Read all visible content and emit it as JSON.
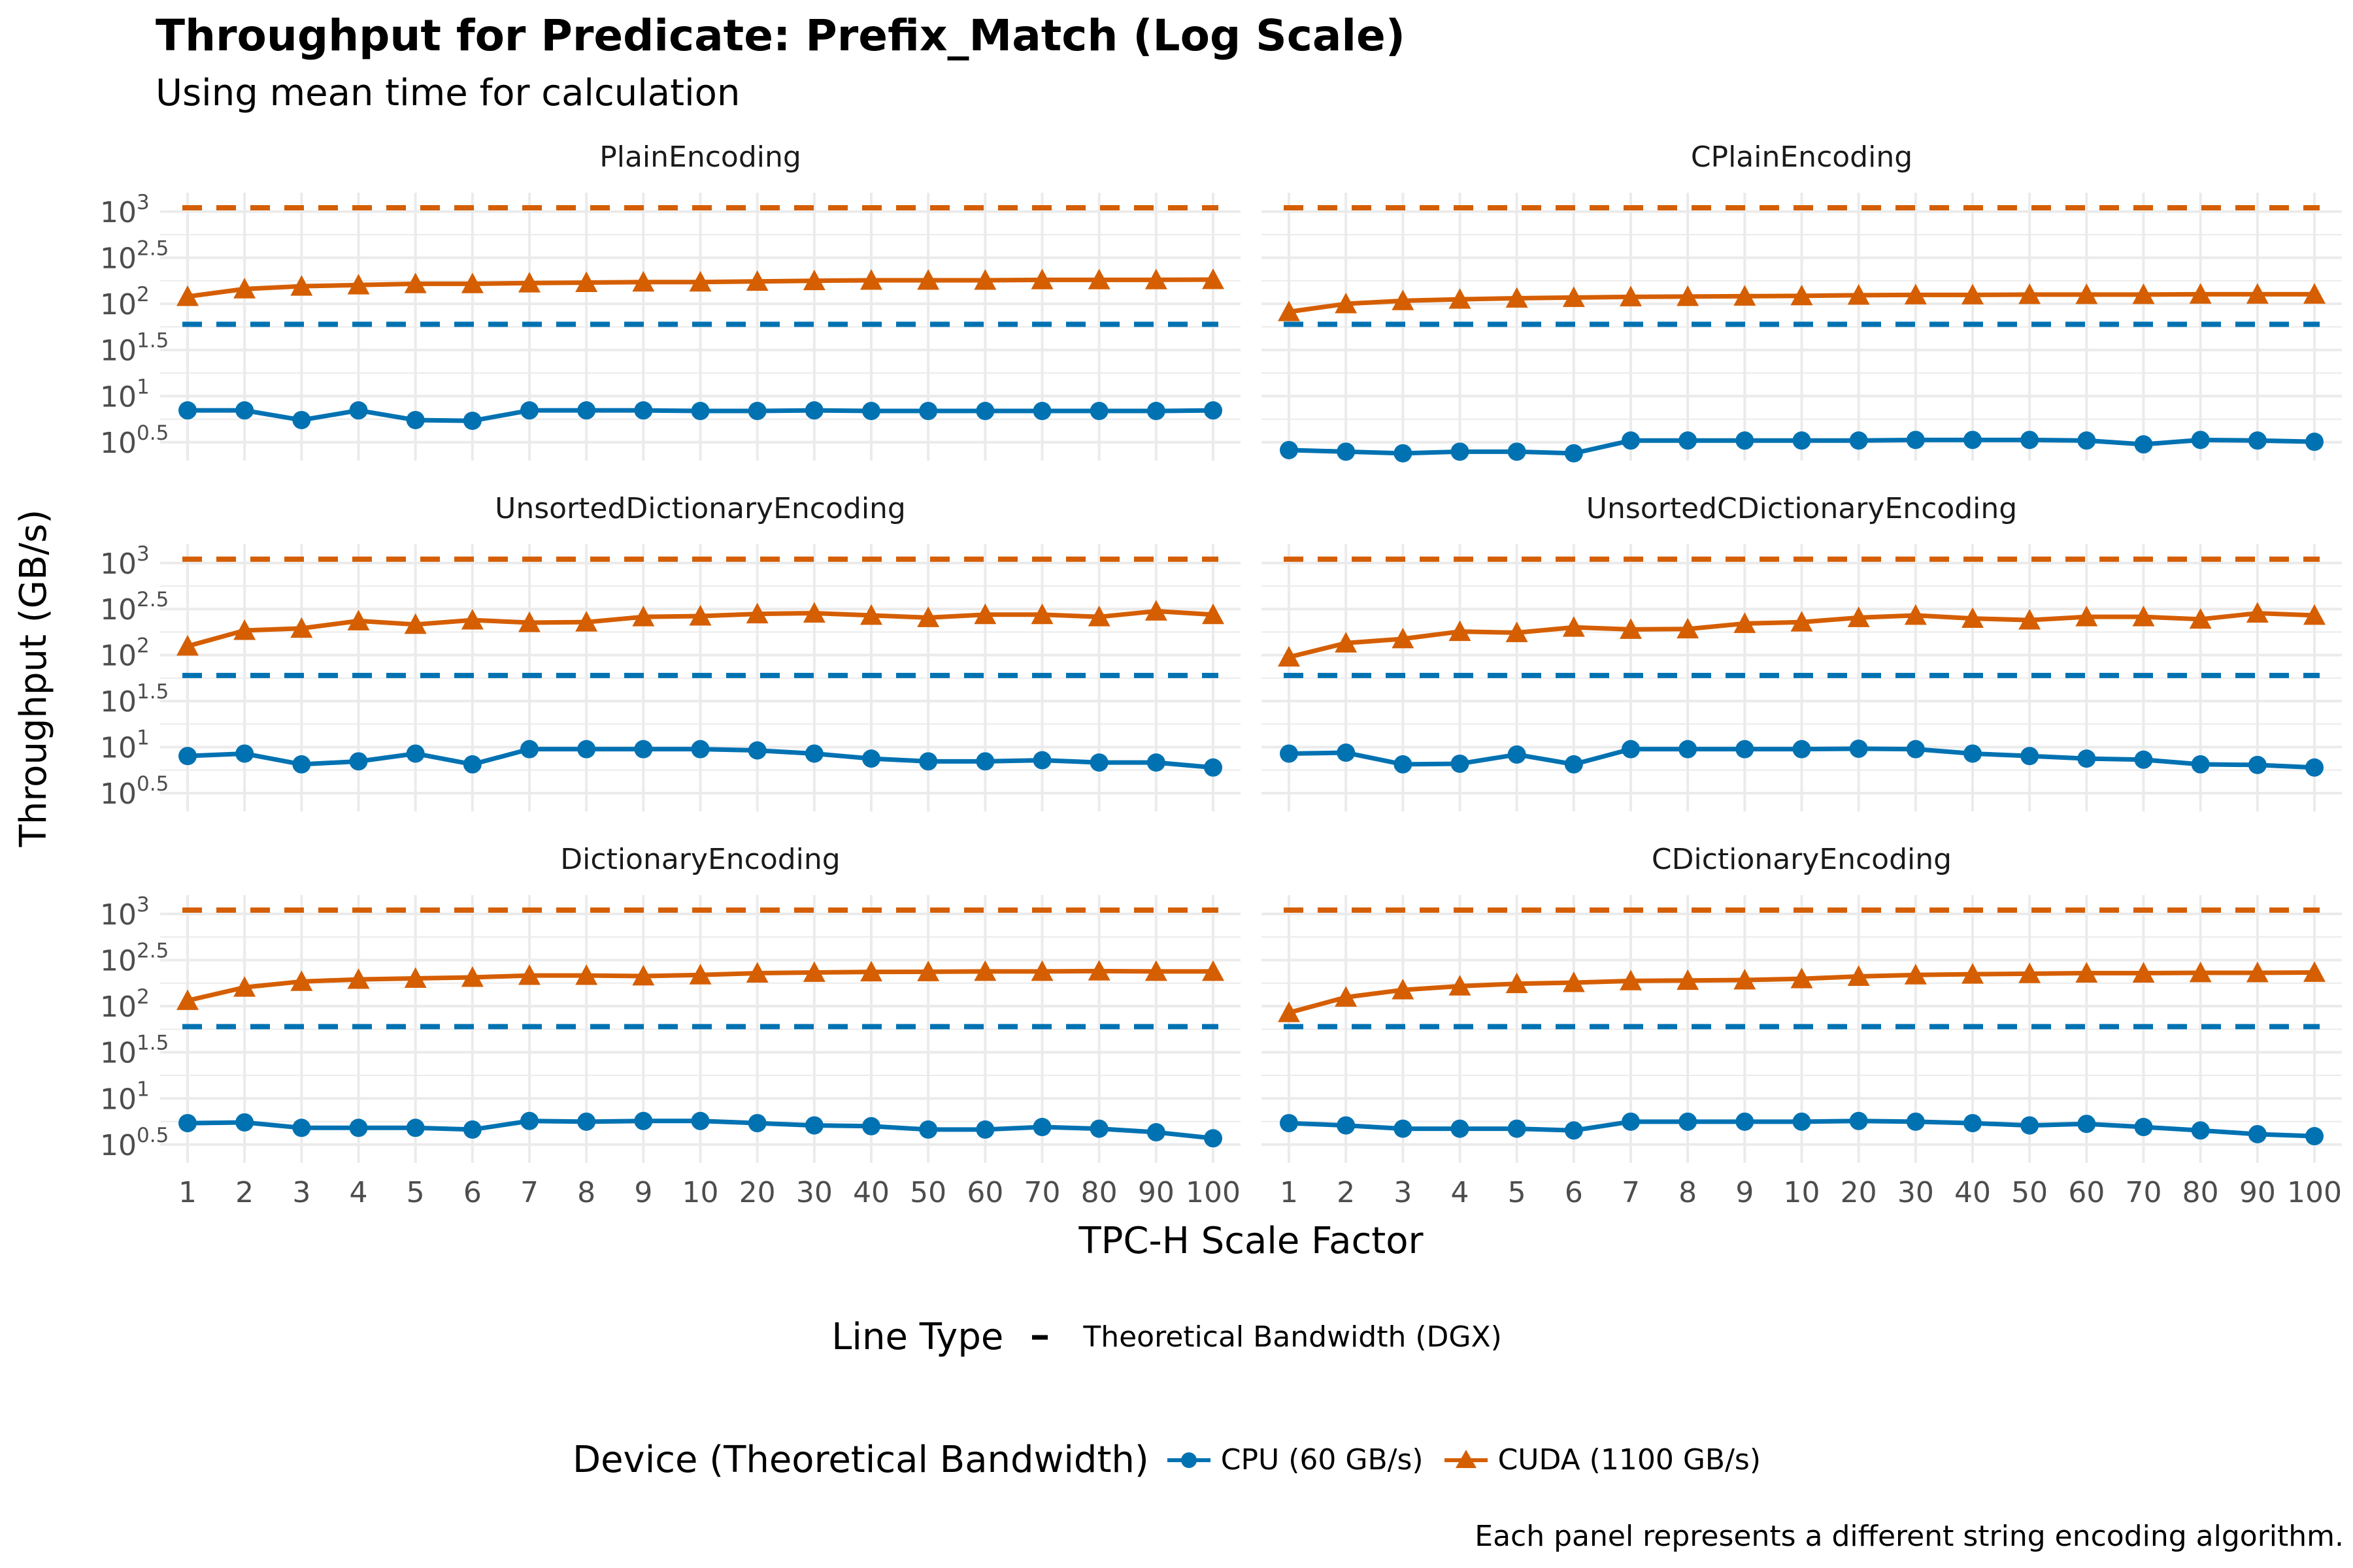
{
  "title": "Throughput for Predicate: Prefix_Match (Log Scale)",
  "subtitle": "Using mean time for calculation",
  "caption": "Each panel represents a different string encoding algorithm.",
  "colors": {
    "cpu": "#0072B2",
    "cuda": "#D55E00",
    "grid": "#EBEBEB"
  },
  "legend": {
    "linetype_title": "Line Type",
    "linetype_label": "Theoretical Bandwidth (DGX)",
    "device_title": "Device (Theoretical Bandwidth)",
    "cpu_label": "CPU (60 GB/s)",
    "cuda_label": "CUDA (1100 GB/s)"
  },
  "chart_data": {
    "type": "line",
    "facet_by": "encoding",
    "ncol": 2,
    "y_scale": "log10",
    "xlabel": "TPC-H Scale Factor",
    "ylabel": "Throughput (GB/s)",
    "categories": [
      "1",
      "2",
      "3",
      "4",
      "5",
      "6",
      "7",
      "8",
      "9",
      "10",
      "20",
      "30",
      "40",
      "50",
      "60",
      "70",
      "80",
      "90",
      "100"
    ],
    "y_ticks": [
      {
        "base": "10",
        "exp": "0.5",
        "value": 3.162
      },
      {
        "base": "10",
        "exp": "1",
        "value": 10
      },
      {
        "base": "10",
        "exp": "1.5",
        "value": 31.62
      },
      {
        "base": "10",
        "exp": "2",
        "value": 100
      },
      {
        "base": "10",
        "exp": "2.5",
        "value": 316.2
      },
      {
        "base": "10",
        "exp": "3",
        "value": 1000
      }
    ],
    "ylim": [
      2.0,
      1600
    ],
    "reference_lines": [
      {
        "series": "CPU (60 GB/s)",
        "value": 60,
        "style": "dashed"
      },
      {
        "series": "CUDA (1100 GB/s)",
        "value": 1100,
        "style": "dashed"
      }
    ],
    "panels": [
      {
        "name": "PlainEncoding",
        "series": [
          {
            "name": "CPU (60 GB/s)",
            "marker": "circle",
            "values": [
              7.0,
              7.0,
              5.5,
              7.0,
              5.5,
              5.4,
              7.0,
              7.0,
              7.0,
              6.9,
              6.9,
              7.0,
              6.9,
              6.9,
              6.9,
              6.9,
              6.9,
              6.9,
              7.0
            ]
          },
          {
            "name": "CUDA (1100 GB/s)",
            "marker": "triangle",
            "values": [
              120,
              145,
              155,
              160,
              165,
              165,
              168,
              170,
              172,
              172,
              175,
              178,
              180,
              180,
              180,
              182,
              182,
              182,
              183
            ]
          }
        ]
      },
      {
        "name": "CPlainEncoding",
        "series": [
          {
            "name": "CPU (60 GB/s)",
            "marker": "circle",
            "values": [
              2.6,
              2.5,
              2.4,
              2.5,
              2.5,
              2.4,
              3.3,
              3.3,
              3.3,
              3.3,
              3.3,
              3.35,
              3.35,
              3.35,
              3.3,
              3.0,
              3.35,
              3.3,
              3.2
            ]
          },
          {
            "name": "CUDA (1100 GB/s)",
            "marker": "triangle",
            "values": [
              82,
              100,
              108,
              112,
              115,
              117,
              119,
              120,
              121,
              122,
              124,
              125,
              125,
              126,
              126,
              126,
              127,
              127,
              127
            ]
          }
        ]
      },
      {
        "name": "UnsortedDictionaryEncoding",
        "series": [
          {
            "name": "CPU (60 GB/s)",
            "marker": "circle",
            "values": [
              8.0,
              8.5,
              6.5,
              7.0,
              8.5,
              6.5,
              9.5,
              9.5,
              9.5,
              9.5,
              9.2,
              8.5,
              7.5,
              7.0,
              7.0,
              7.2,
              6.8,
              6.8,
              6.0
            ]
          },
          {
            "name": "CUDA (1100 GB/s)",
            "marker": "triangle",
            "values": [
              125,
              185,
              195,
              235,
              215,
              240,
              225,
              228,
              260,
              265,
              280,
              285,
              270,
              255,
              275,
              275,
              260,
              300,
              275
            ]
          }
        ]
      },
      {
        "name": "UnsortedCDictionaryEncoding",
        "series": [
          {
            "name": "CPU (60 GB/s)",
            "marker": "circle",
            "values": [
              8.5,
              8.7,
              6.5,
              6.6,
              8.3,
              6.5,
              9.5,
              9.5,
              9.5,
              9.5,
              9.6,
              9.5,
              8.5,
              8.0,
              7.5,
              7.3,
              6.5,
              6.4,
              6.0
            ]
          },
          {
            "name": "CUDA (1100 GB/s)",
            "marker": "triangle",
            "values": [
              95,
              135,
              150,
              180,
              175,
              200,
              190,
              192,
              220,
              228,
              255,
              270,
              250,
              240,
              260,
              260,
              245,
              285,
              270
            ]
          }
        ]
      },
      {
        "name": "DictionaryEncoding",
        "series": [
          {
            "name": "CPU (60 GB/s)",
            "marker": "circle",
            "values": [
              5.4,
              5.5,
              4.8,
              4.8,
              4.8,
              4.6,
              5.7,
              5.6,
              5.7,
              5.7,
              5.4,
              5.1,
              5.0,
              4.6,
              4.6,
              4.9,
              4.7,
              4.3,
              3.7
            ]
          },
          {
            "name": "CUDA (1100 GB/s)",
            "marker": "triangle",
            "values": [
              115,
              160,
              185,
              195,
              200,
              205,
              215,
              215,
              212,
              218,
              228,
              232,
              235,
              236,
              238,
              238,
              240,
              238,
              238
            ]
          }
        ]
      },
      {
        "name": "CDictionaryEncoding",
        "series": [
          {
            "name": "CPU (60 GB/s)",
            "marker": "circle",
            "values": [
              5.4,
              5.1,
              4.7,
              4.7,
              4.7,
              4.5,
              5.6,
              5.6,
              5.6,
              5.6,
              5.7,
              5.6,
              5.4,
              5.1,
              5.3,
              4.9,
              4.5,
              4.1,
              3.9
            ]
          },
          {
            "name": "CUDA (1100 GB/s)",
            "marker": "triangle",
            "values": [
              85,
              125,
              150,
              165,
              175,
              180,
              188,
              190,
              192,
              198,
              210,
              218,
              222,
              225,
              228,
              228,
              230,
              230,
              232
            ]
          }
        ]
      }
    ]
  }
}
